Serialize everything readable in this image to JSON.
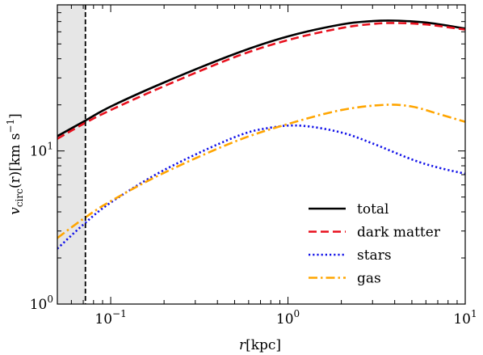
{
  "chart_data": {
    "type": "line",
    "xscale": "log",
    "yscale": "log",
    "xlim": [
      0.05,
      10
    ],
    "ylim": [
      1,
      90
    ],
    "xlabel": {
      "main": "r",
      "unit": "[kpc]"
    },
    "ylabel": {
      "main": "v",
      "sub": "circ",
      "arg": "(r)",
      "unit": "[km s",
      "unit_exp": "−1",
      "unit_close": "]"
    },
    "x_ticks": [
      {
        "value": 0.1,
        "base": "10",
        "exp": "−1"
      },
      {
        "value": 1,
        "base": "10",
        "exp": "0"
      },
      {
        "value": 10,
        "base": "10",
        "exp": "1"
      }
    ],
    "y_ticks": [
      {
        "value": 1,
        "base": "10",
        "exp": "0"
      },
      {
        "value": 10,
        "base": "10",
        "exp": "1"
      }
    ],
    "grid": false,
    "legend_position": "lower-right",
    "shaded_region": {
      "x0": 0.05,
      "x1": 0.072,
      "color": "#e6e6e6"
    },
    "vline": {
      "x": 0.072,
      "color": "#000000",
      "style": "dashed"
    },
    "series": [
      {
        "name": "total",
        "color": "#000000",
        "style": "solid",
        "x": [
          0.05,
          0.07,
          0.1,
          0.2,
          0.5,
          1,
          2,
          3,
          4,
          6,
          10
        ],
        "y": [
          12.5,
          15.5,
          19.5,
          28,
          43,
          56,
          67,
          70.5,
          71,
          69,
          63
        ]
      },
      {
        "name": "dark matter",
        "color": "#e8111e",
        "style": "dashed",
        "x": [
          0.05,
          0.07,
          0.1,
          0.2,
          0.5,
          1,
          2,
          3,
          4,
          6,
          10
        ],
        "y": [
          12,
          15,
          18.5,
          26.5,
          41,
          53,
          63.5,
          67.5,
          68.5,
          67,
          62
        ]
      },
      {
        "name": "stars",
        "color": "#1111e8",
        "style": "dotted",
        "x": [
          0.05,
          0.07,
          0.1,
          0.2,
          0.5,
          0.8,
          1.2,
          2,
          3,
          5,
          7,
          10
        ],
        "y": [
          2.3,
          3.3,
          4.6,
          7.5,
          12.3,
          14.2,
          14.6,
          13.2,
          11.2,
          8.8,
          7.8,
          7.1
        ]
      },
      {
        "name": "gas",
        "color": "#ffa500",
        "style": "dashdot",
        "x": [
          0.05,
          0.07,
          0.1,
          0.2,
          0.5,
          1,
          2,
          3.5,
          5,
          7,
          10
        ],
        "y": [
          2.7,
          3.6,
          4.7,
          7.2,
          11.5,
          15,
          18.5,
          20,
          19.5,
          17.5,
          15.5
        ]
      }
    ]
  }
}
